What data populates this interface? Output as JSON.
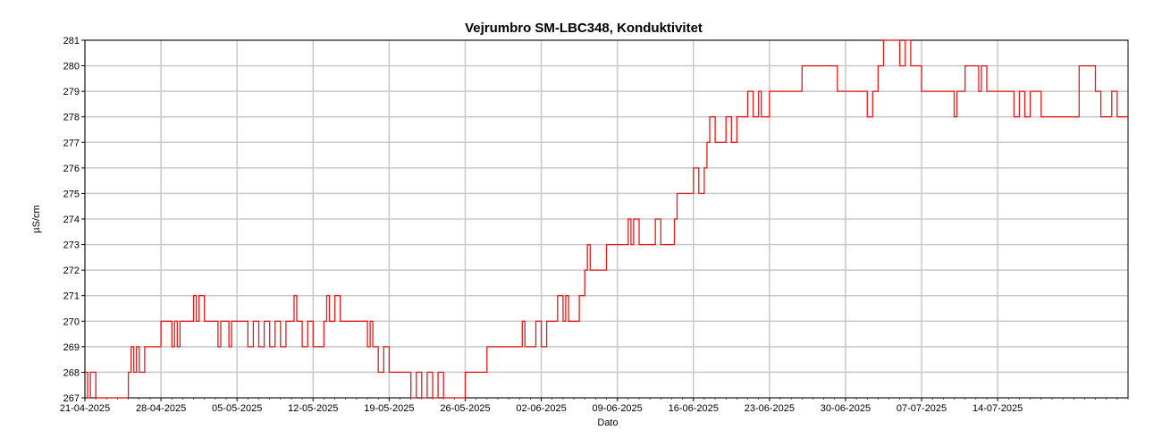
{
  "chart_data": {
    "type": "line",
    "title": "Vejrumbro SM-LBC348, Konduktivitet",
    "xlabel": "Dato",
    "ylabel": "µS/cm",
    "x_ticks": [
      "21-04-2025",
      "28-04-2025",
      "05-05-2025",
      "12-05-2025",
      "19-05-2025",
      "26-05-2025",
      "02-06-2025",
      "09-06-2025",
      "16-06-2025",
      "23-06-2025",
      "30-06-2025",
      "07-07-2025",
      "14-07-2025"
    ],
    "xlim": [
      "2025-04-21",
      "2025-07-26"
    ],
    "ylim": [
      267,
      281
    ],
    "y_ticks": [
      267,
      268,
      269,
      270,
      271,
      272,
      273,
      274,
      275,
      276,
      277,
      278,
      279,
      280,
      281
    ],
    "grid": true,
    "line_color": "#e41a1c",
    "series": [
      {
        "x": [
          "2025-04-21",
          "2025-04-21 06:00",
          "2025-04-21 12:00",
          "2025-04-22",
          "2025-04-24",
          "2025-04-25",
          "2025-04-25 06:00",
          "2025-04-25 12:00",
          "2025-04-25 18:00",
          "2025-04-26",
          "2025-04-26 12:00",
          "2025-04-27",
          "2025-04-28",
          "2025-04-29",
          "2025-04-29 06:00",
          "2025-04-29 12:00",
          "2025-04-29 18:00",
          "2025-04-30",
          "2025-04-30 12:00",
          "2025-05-01",
          "2025-05-01 06:00",
          "2025-05-01 12:00",
          "2025-05-02",
          "2025-05-02 12:00",
          "2025-05-03",
          "2025-05-03 06:00",
          "2025-05-03 12:00",
          "2025-05-04",
          "2025-05-04 06:00",
          "2025-05-04 12:00",
          "2025-05-05",
          "2025-05-06",
          "2025-05-06 12:00",
          "2025-05-07",
          "2025-05-07 12:00",
          "2025-05-08",
          "2025-05-08 12:00",
          "2025-05-09",
          "2025-05-09 12:00",
          "2025-05-10",
          "2025-05-10 06:00",
          "2025-05-10 12:00",
          "2025-05-11",
          "2025-05-11 12:00",
          "2025-05-12",
          "2025-05-13",
          "2025-05-13 06:00",
          "2025-05-13 12:00",
          "2025-05-14",
          "2025-05-14 12:00",
          "2025-05-15",
          "2025-05-16",
          "2025-05-17",
          "2025-05-17 06:00",
          "2025-05-17 12:00",
          "2025-05-18",
          "2025-05-18 12:00",
          "2025-05-19",
          "2025-05-20",
          "2025-05-21",
          "2025-05-21 12:00",
          "2025-05-22",
          "2025-05-22 12:00",
          "2025-05-23",
          "2025-05-23 12:00",
          "2025-05-24",
          "2025-05-25",
          "2025-05-26",
          "2025-05-28",
          "2025-05-30",
          "2025-05-31",
          "2025-05-31 06:00",
          "2025-05-31 12:00",
          "2025-06-01",
          "2025-06-01 12:00",
          "2025-06-02",
          "2025-06-02 12:00",
          "2025-06-03",
          "2025-06-03 12:00",
          "2025-06-04",
          "2025-06-04 06:00",
          "2025-06-04 12:00",
          "2025-06-05",
          "2025-06-05 12:00",
          "2025-06-06",
          "2025-06-06 06:00",
          "2025-06-06 12:00",
          "2025-06-07",
          "2025-06-08",
          "2025-06-09",
          "2025-06-10",
          "2025-06-10 06:00",
          "2025-06-10 12:00",
          "2025-06-11",
          "2025-06-12",
          "2025-06-12 12:00",
          "2025-06-13",
          "2025-06-14",
          "2025-06-14 06:00",
          "2025-06-14 12:00",
          "2025-06-15",
          "2025-06-15 12:00",
          "2025-06-16",
          "2025-06-16 12:00",
          "2025-06-17",
          "2025-06-17 06:00",
          "2025-06-17 12:00",
          "2025-06-18",
          "2025-06-18 12:00",
          "2025-06-19",
          "2025-06-19 12:00",
          "2025-06-20",
          "2025-06-20 06:00",
          "2025-06-20 12:00",
          "2025-06-21",
          "2025-06-21 12:00",
          "2025-06-22",
          "2025-06-22 06:00",
          "2025-06-22 12:00",
          "2025-06-23",
          "2025-06-26",
          "2025-06-29",
          "2025-06-29 06:00",
          "2025-06-29 12:00",
          "2025-07-02",
          "2025-07-02 12:00",
          "2025-07-03",
          "2025-07-03 06:00",
          "2025-07-03 12:00",
          "2025-07-04",
          "2025-07-05",
          "2025-07-05 12:00",
          "2025-07-06",
          "2025-07-07",
          "2025-07-10",
          "2025-07-10 06:00",
          "2025-07-10 12:00",
          "2025-07-11",
          "2025-07-12",
          "2025-07-12 06:00",
          "2025-07-12 12:00",
          "2025-07-13",
          "2025-07-15",
          "2025-07-15 12:00",
          "2025-07-16",
          "2025-07-16 12:00",
          "2025-07-17",
          "2025-07-18",
          "2025-07-20",
          "2025-07-21",
          "2025-07-21 12:00",
          "2025-07-22",
          "2025-07-23",
          "2025-07-23 06:00",
          "2025-07-23 12:00",
          "2025-07-24",
          "2025-07-24 12:00",
          "2025-07-25"
        ],
        "values": [
          268,
          267,
          268,
          267,
          267,
          268,
          269,
          268,
          269,
          268,
          269,
          269,
          270,
          269,
          270,
          269,
          270,
          270,
          270,
          271,
          270,
          271,
          270,
          270,
          270,
          269,
          270,
          270,
          269,
          270,
          270,
          269,
          270,
          269,
          270,
          269,
          270,
          269,
          270,
          270,
          271,
          270,
          269,
          270,
          269,
          270,
          271,
          270,
          271,
          270,
          270,
          270,
          269,
          270,
          269,
          268,
          269,
          268,
          268,
          267,
          268,
          267,
          268,
          267,
          268,
          267,
          267,
          268,
          269,
          269,
          269,
          270,
          269,
          269,
          270,
          269,
          270,
          270,
          271,
          270,
          271,
          270,
          270,
          271,
          272,
          273,
          272,
          272,
          273,
          273,
          274,
          273,
          274,
          273,
          273,
          274,
          273,
          273,
          274,
          275,
          275,
          275,
          276,
          275,
          276,
          277,
          278,
          277,
          277,
          278,
          277,
          278,
          278,
          278,
          279,
          278,
          279,
          278,
          278,
          279,
          280,
          280,
          279,
          279,
          278,
          279,
          280,
          280,
          281,
          281,
          280,
          281,
          280,
          279,
          278,
          279,
          279,
          280,
          280,
          279,
          280,
          279,
          279,
          278,
          279,
          278,
          279,
          278,
          278,
          278,
          280,
          280,
          279,
          279,
          278,
          278,
          279,
          278
        ],
        "x_range": [
          "2025-04-21",
          "2025-07-26"
        ]
      }
    ]
  }
}
